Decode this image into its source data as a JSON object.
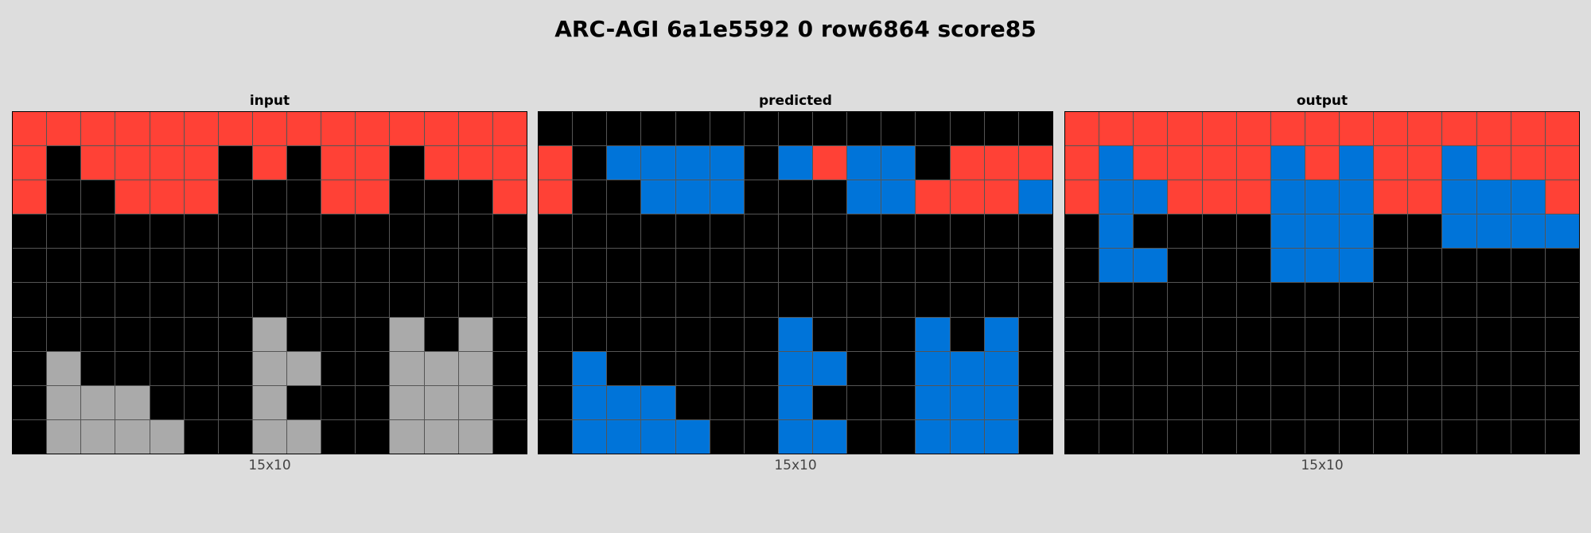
{
  "title": "ARC-AGI 6a1e5592 0 row6864 score85",
  "colors": {
    "0": "#000000",
    "1": "#0074D9",
    "2": "#FF4136",
    "5": "#AAAAAA"
  },
  "panels": [
    {
      "title": "input",
      "caption": "15x10",
      "grid": [
        [
          2,
          2,
          2,
          2,
          2,
          2,
          2,
          2,
          2,
          2,
          2,
          2,
          2,
          2,
          2
        ],
        [
          2,
          0,
          2,
          2,
          2,
          2,
          0,
          2,
          0,
          2,
          2,
          0,
          2,
          2,
          2
        ],
        [
          2,
          0,
          0,
          2,
          2,
          2,
          0,
          0,
          0,
          2,
          2,
          0,
          0,
          0,
          2
        ],
        [
          0,
          0,
          0,
          0,
          0,
          0,
          0,
          0,
          0,
          0,
          0,
          0,
          0,
          0,
          0
        ],
        [
          0,
          0,
          0,
          0,
          0,
          0,
          0,
          0,
          0,
          0,
          0,
          0,
          0,
          0,
          0
        ],
        [
          0,
          0,
          0,
          0,
          0,
          0,
          0,
          0,
          0,
          0,
          0,
          0,
          0,
          0,
          0
        ],
        [
          0,
          0,
          0,
          0,
          0,
          0,
          0,
          5,
          0,
          0,
          0,
          5,
          0,
          5,
          0
        ],
        [
          0,
          5,
          0,
          0,
          0,
          0,
          0,
          5,
          5,
          0,
          0,
          5,
          5,
          5,
          0
        ],
        [
          0,
          5,
          5,
          5,
          0,
          0,
          0,
          5,
          0,
          0,
          0,
          5,
          5,
          5,
          0
        ],
        [
          0,
          5,
          5,
          5,
          5,
          0,
          0,
          5,
          5,
          0,
          0,
          5,
          5,
          5,
          0
        ]
      ]
    },
    {
      "title": "predicted",
      "caption": "15x10",
      "grid": [
        [
          0,
          0,
          0,
          0,
          0,
          0,
          0,
          0,
          0,
          0,
          0,
          0,
          0,
          0,
          0
        ],
        [
          2,
          0,
          1,
          1,
          1,
          1,
          0,
          1,
          2,
          1,
          1,
          0,
          2,
          2,
          2
        ],
        [
          2,
          0,
          0,
          1,
          1,
          1,
          0,
          0,
          0,
          1,
          1,
          2,
          2,
          2,
          1
        ],
        [
          0,
          0,
          0,
          0,
          0,
          0,
          0,
          0,
          0,
          0,
          0,
          0,
          0,
          0,
          0
        ],
        [
          0,
          0,
          0,
          0,
          0,
          0,
          0,
          0,
          0,
          0,
          0,
          0,
          0,
          0,
          0
        ],
        [
          0,
          0,
          0,
          0,
          0,
          0,
          0,
          0,
          0,
          0,
          0,
          0,
          0,
          0,
          0
        ],
        [
          0,
          0,
          0,
          0,
          0,
          0,
          0,
          1,
          0,
          0,
          0,
          1,
          0,
          1,
          0
        ],
        [
          0,
          1,
          0,
          0,
          0,
          0,
          0,
          1,
          1,
          0,
          0,
          1,
          1,
          1,
          0
        ],
        [
          0,
          1,
          1,
          1,
          0,
          0,
          0,
          1,
          0,
          0,
          0,
          1,
          1,
          1,
          0
        ],
        [
          0,
          1,
          1,
          1,
          1,
          0,
          0,
          1,
          1,
          0,
          0,
          1,
          1,
          1,
          0
        ]
      ]
    },
    {
      "title": "output",
      "caption": "15x10",
      "grid": [
        [
          2,
          2,
          2,
          2,
          2,
          2,
          2,
          2,
          2,
          2,
          2,
          2,
          2,
          2,
          2
        ],
        [
          2,
          1,
          2,
          2,
          2,
          2,
          1,
          2,
          1,
          2,
          2,
          1,
          2,
          2,
          2
        ],
        [
          2,
          1,
          1,
          2,
          2,
          2,
          1,
          1,
          1,
          2,
          2,
          1,
          1,
          1,
          2
        ],
        [
          0,
          1,
          0,
          0,
          0,
          0,
          1,
          1,
          1,
          0,
          0,
          1,
          1,
          1,
          1
        ],
        [
          0,
          1,
          1,
          0,
          0,
          0,
          1,
          1,
          1,
          0,
          0,
          0,
          0,
          0,
          0
        ],
        [
          0,
          0,
          0,
          0,
          0,
          0,
          0,
          0,
          0,
          0,
          0,
          0,
          0,
          0,
          0
        ],
        [
          0,
          0,
          0,
          0,
          0,
          0,
          0,
          0,
          0,
          0,
          0,
          0,
          0,
          0,
          0
        ],
        [
          0,
          0,
          0,
          0,
          0,
          0,
          0,
          0,
          0,
          0,
          0,
          0,
          0,
          0,
          0
        ],
        [
          0,
          0,
          0,
          0,
          0,
          0,
          0,
          0,
          0,
          0,
          0,
          0,
          0,
          0,
          0
        ],
        [
          0,
          0,
          0,
          0,
          0,
          0,
          0,
          0,
          0,
          0,
          0,
          0,
          0,
          0,
          0
        ]
      ]
    }
  ]
}
